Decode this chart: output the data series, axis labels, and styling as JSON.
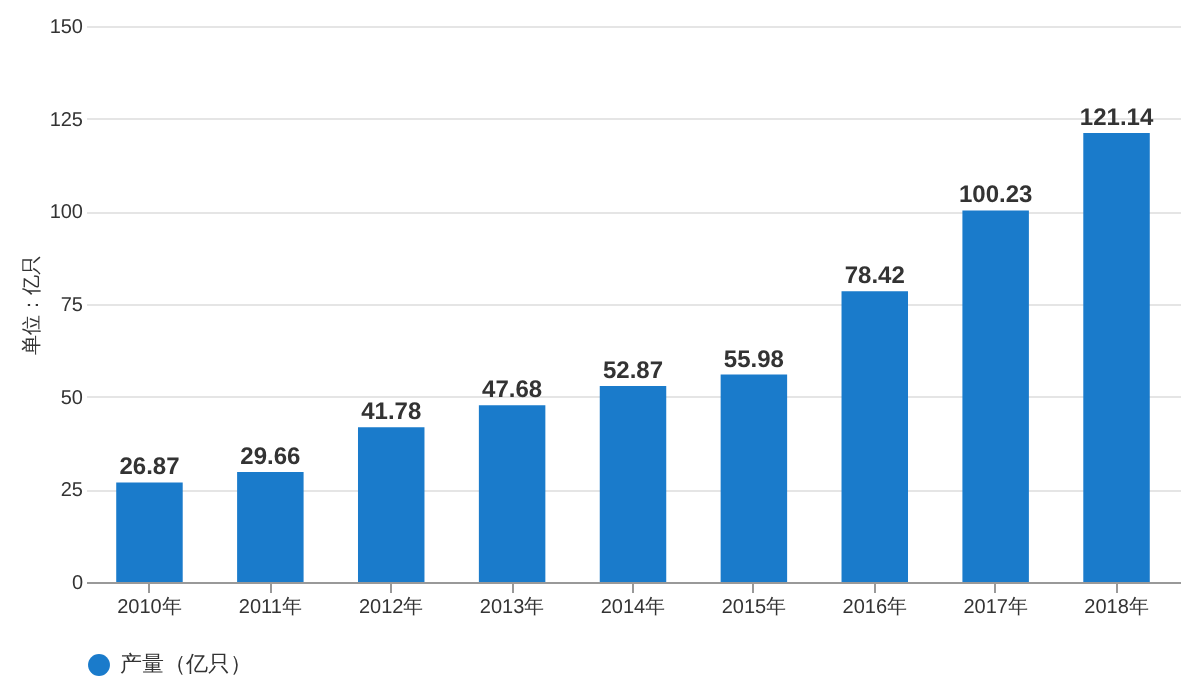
{
  "chart_data": {
    "type": "bar",
    "ylabel": "单位：亿只",
    "categories": [
      "2010年",
      "2011年",
      "2012年",
      "2013年",
      "2014年",
      "2015年",
      "2016年",
      "2017年",
      "2018年"
    ],
    "series": [
      {
        "name": "产量（亿只）",
        "color": "#1a7bcb",
        "values": [
          26.87,
          29.66,
          41.78,
          47.68,
          52.87,
          55.98,
          78.42,
          100.23,
          121.14
        ]
      }
    ],
    "ylim": [
      0,
      150
    ],
    "yticks": [
      0,
      25,
      50,
      75,
      100,
      125,
      150
    ],
    "grid": "y",
    "legend": "bottom",
    "data_labels": true
  }
}
